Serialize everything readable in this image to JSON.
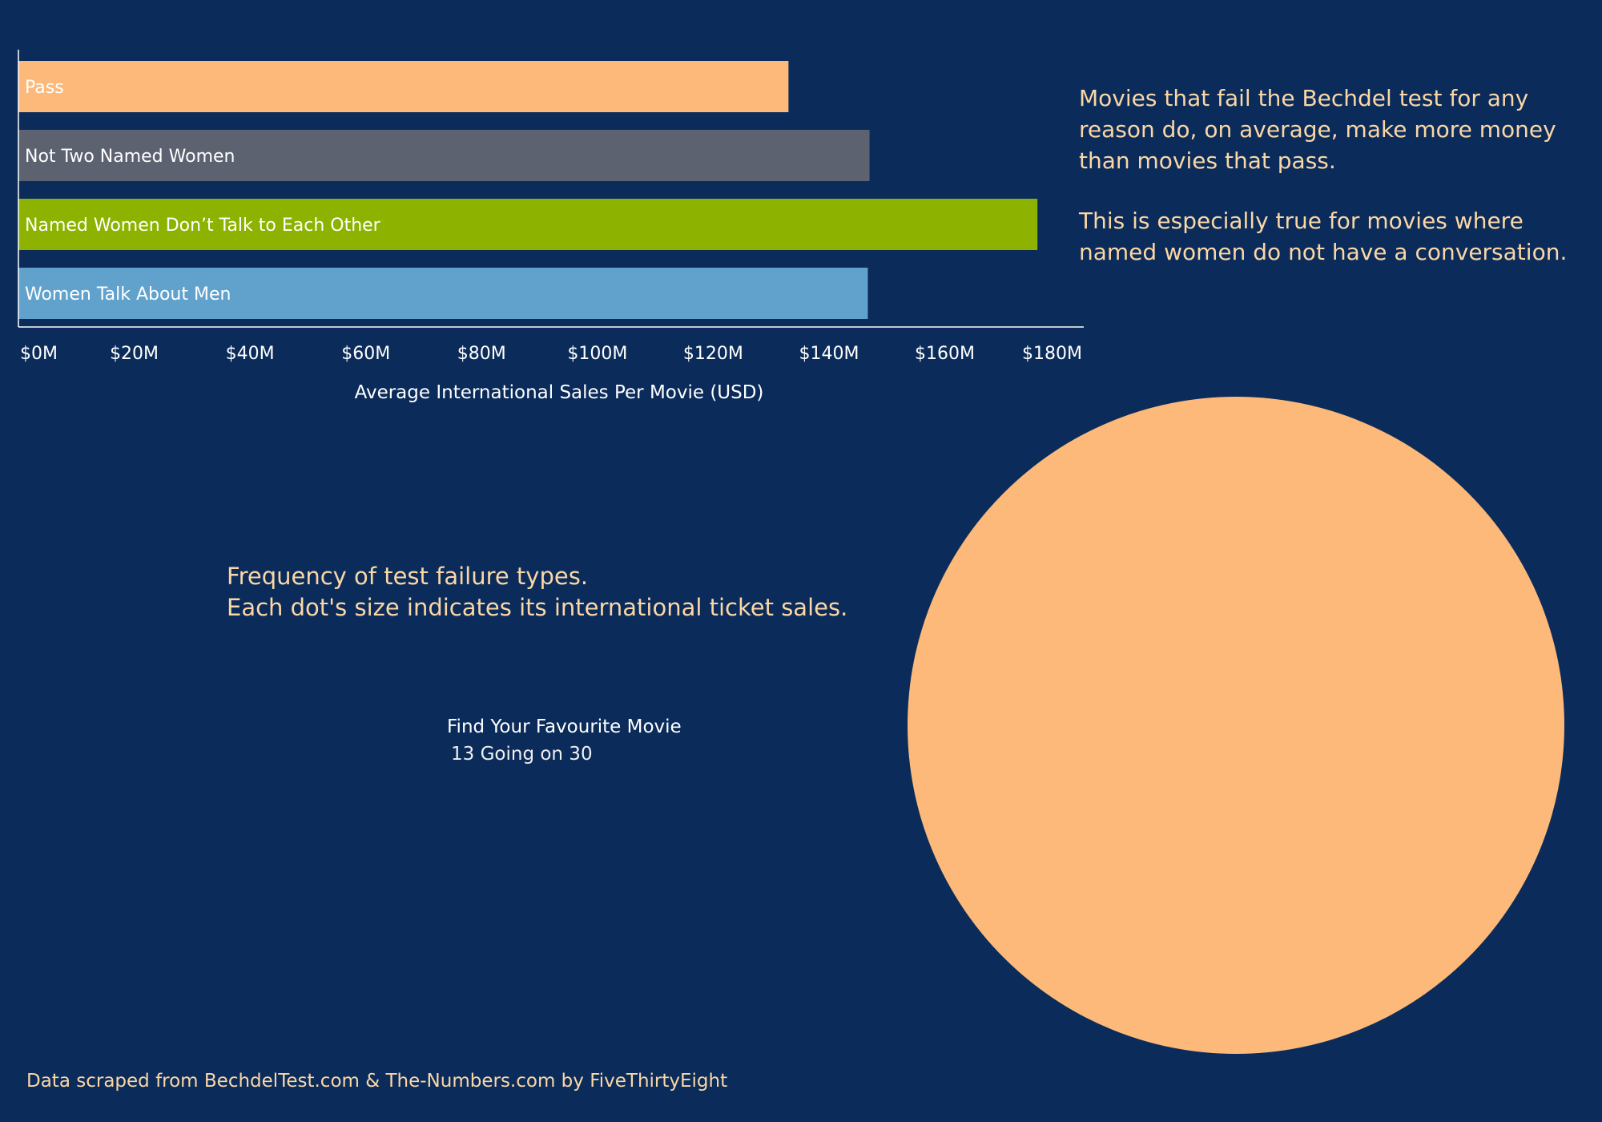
{
  "chart_data": [
    {
      "type": "bar",
      "orientation": "horizontal",
      "categories": [
        "Pass",
        "Not Two Named Women",
        "Named Women Don’t Talk to Each Other",
        "Women Talk About Men"
      ],
      "values": [
        133,
        147,
        176,
        146.7
      ],
      "colors": [
        "#fdb97a",
        "#5c6270",
        "#8db300",
        "#60a2cc"
      ],
      "xlabel": "Average International Sales Per Movie (USD)",
      "ylabel": "",
      "xlim": [
        0,
        184
      ],
      "xticks": [
        {
          "value": 0,
          "label": "$0M"
        },
        {
          "value": 20,
          "label": "$20M"
        },
        {
          "value": 40,
          "label": "$40M"
        },
        {
          "value": 60,
          "label": "$60M"
        },
        {
          "value": 80,
          "label": "$80M"
        },
        {
          "value": 100,
          "label": "$100M"
        },
        {
          "value": 120,
          "label": "$120M"
        },
        {
          "value": 140,
          "label": "$140M"
        },
        {
          "value": 160,
          "label": "$160M"
        },
        {
          "value": 180,
          "label": "$180M"
        }
      ],
      "grid": false
    },
    {
      "type": "scatter",
      "title": "Frequency of test failure types.\nEach dot's size indicates its international ticket sales.",
      "points": [
        {
          "category": "Pass",
          "color": "#fdb97a"
        }
      ]
    }
  ],
  "annotations": {
    "line1": "Movies that fail the Bechdel test for any",
    "line2": "reason do, on average, make more money",
    "line3": "than movies that pass.",
    "line4": "This is especially true for movies where",
    "line5": "named women do not have a conversation."
  },
  "bubble_section": {
    "title_line1": "Frequency of test failure types.",
    "title_line2": "Each dot's size indicates its international ticket sales."
  },
  "movie_finder": {
    "label": "Find Your Favourite Movie",
    "value": "13 Going on 30"
  },
  "footer": "Data scraped from BechdelTest.com & The-Numbers.com by FiveThirtyEight",
  "colors": {
    "background": "#0b2c5a",
    "accent_text": "#fbd7a6",
    "axis": "#ffffff"
  }
}
